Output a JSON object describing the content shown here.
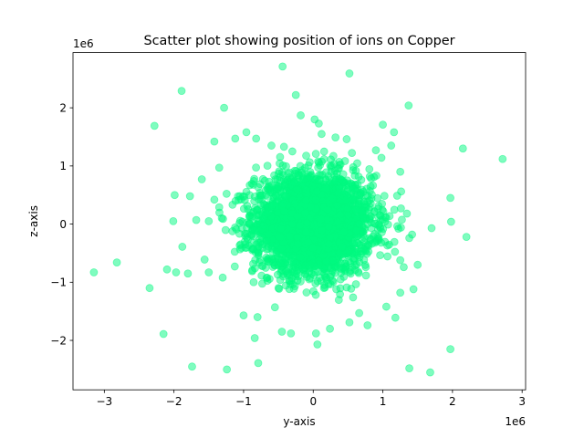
{
  "chart_data": {
    "type": "scatter",
    "title": "Scatter plot showing position of ions on Copper",
    "xlabel": "y-axis",
    "ylabel": "z-axis",
    "x_offset_label": "1e6",
    "y_offset_label": "1e6",
    "xlim": [
      -3.45,
      3.05
    ],
    "ylim": [
      -2.85,
      2.95
    ],
    "xticks": [
      -3,
      -2,
      -1,
      0,
      1,
      2,
      3
    ],
    "yticks": [
      -2,
      -1,
      0,
      1,
      2
    ],
    "xtick_labels": [
      "−3",
      "−2",
      "−1",
      "0",
      "1",
      "2",
      "3"
    ],
    "ytick_labels": [
      "−2",
      "−1",
      "0",
      "1",
      "2"
    ],
    "grid": false,
    "marker_color": "#00fa7f",
    "marker_alpha": 0.5,
    "core_sigma": [
      0.42,
      0.42
    ],
    "core_point_count": 3200,
    "outliers": [
      [
        -3.15,
        -0.83
      ],
      [
        -2.82,
        -0.66
      ],
      [
        -2.35,
        -1.1
      ],
      [
        -2.28,
        1.69
      ],
      [
        -2.15,
        -1.89
      ],
      [
        -2.1,
        -0.78
      ],
      [
        -1.97,
        -0.83
      ],
      [
        -1.89,
        2.29
      ],
      [
        -1.74,
        -2.45
      ],
      [
        -1.28,
        2.0
      ],
      [
        -1.24,
        -2.5
      ],
      [
        -0.79,
        -2.39
      ],
      [
        -0.44,
        2.71
      ],
      [
        0.52,
        2.59
      ],
      [
        -0.25,
        2.22
      ],
      [
        1.37,
        2.04
      ],
      [
        1.38,
        -2.48
      ],
      [
        1.68,
        -2.55
      ],
      [
        1.97,
        -2.15
      ],
      [
        2.15,
        1.3
      ],
      [
        2.72,
        1.12
      ],
      [
        2.2,
        -0.22
      ],
      [
        1.97,
        0.45
      ],
      [
        1.98,
        0.04
      ],
      [
        1.7,
        -0.07
      ],
      [
        1.5,
        -0.7
      ],
      [
        1.44,
        -1.12
      ],
      [
        1.18,
        -1.61
      ],
      [
        -1.8,
        -0.85
      ],
      [
        -1.88,
        -0.39
      ],
      [
        -2.01,
        0.05
      ],
      [
        -1.99,
        0.5
      ],
      [
        -1.77,
        0.48
      ],
      [
        -1.6,
        0.77
      ],
      [
        -1.42,
        1.42
      ],
      [
        -1.35,
        0.97
      ],
      [
        -1.12,
        1.47
      ],
      [
        -0.96,
        1.58
      ],
      [
        -0.82,
        1.47
      ],
      [
        -0.18,
        1.87
      ],
      [
        0.02,
        1.8
      ],
      [
        0.08,
        1.73
      ],
      [
        0.32,
        1.49
      ],
      [
        0.48,
        1.46
      ],
      [
        1.0,
        1.71
      ],
      [
        1.16,
        1.58
      ],
      [
        -0.84,
        -1.96
      ],
      [
        -0.32,
        -1.88
      ],
      [
        -0.45,
        -1.85
      ],
      [
        0.04,
        -1.88
      ],
      [
        0.06,
        -2.07
      ],
      [
        0.24,
        -1.8
      ],
      [
        0.52,
        -1.69
      ],
      [
        0.78,
        -1.74
      ],
      [
        0.66,
        -1.53
      ],
      [
        -1.0,
        -1.57
      ],
      [
        -0.8,
        -1.6
      ],
      [
        -0.55,
        -1.43
      ],
      [
        -1.5,
        -0.83
      ],
      [
        -1.56,
        -0.61
      ],
      [
        -1.3,
        -0.92
      ],
      [
        -1.35,
        0.29
      ],
      [
        -1.42,
        0.42
      ],
      [
        -1.68,
        0.07
      ],
      [
        -1.5,
        0.05
      ],
      [
        1.26,
        0.27
      ],
      [
        1.42,
        -0.18
      ],
      [
        1.38,
        -0.24
      ],
      [
        1.25,
        -0.62
      ],
      [
        1.3,
        -0.74
      ],
      [
        1.25,
        -1.18
      ],
      [
        1.05,
        -1.42
      ],
      [
        1.12,
        1.35
      ],
      [
        1.25,
        0.9
      ],
      [
        0.98,
        1.14
      ],
      [
        0.9,
        1.27
      ],
      [
        -0.6,
        1.35
      ],
      [
        -0.42,
        1.33
      ],
      [
        0.12,
        1.55
      ],
      [
        -0.3,
        1.25
      ]
    ]
  }
}
